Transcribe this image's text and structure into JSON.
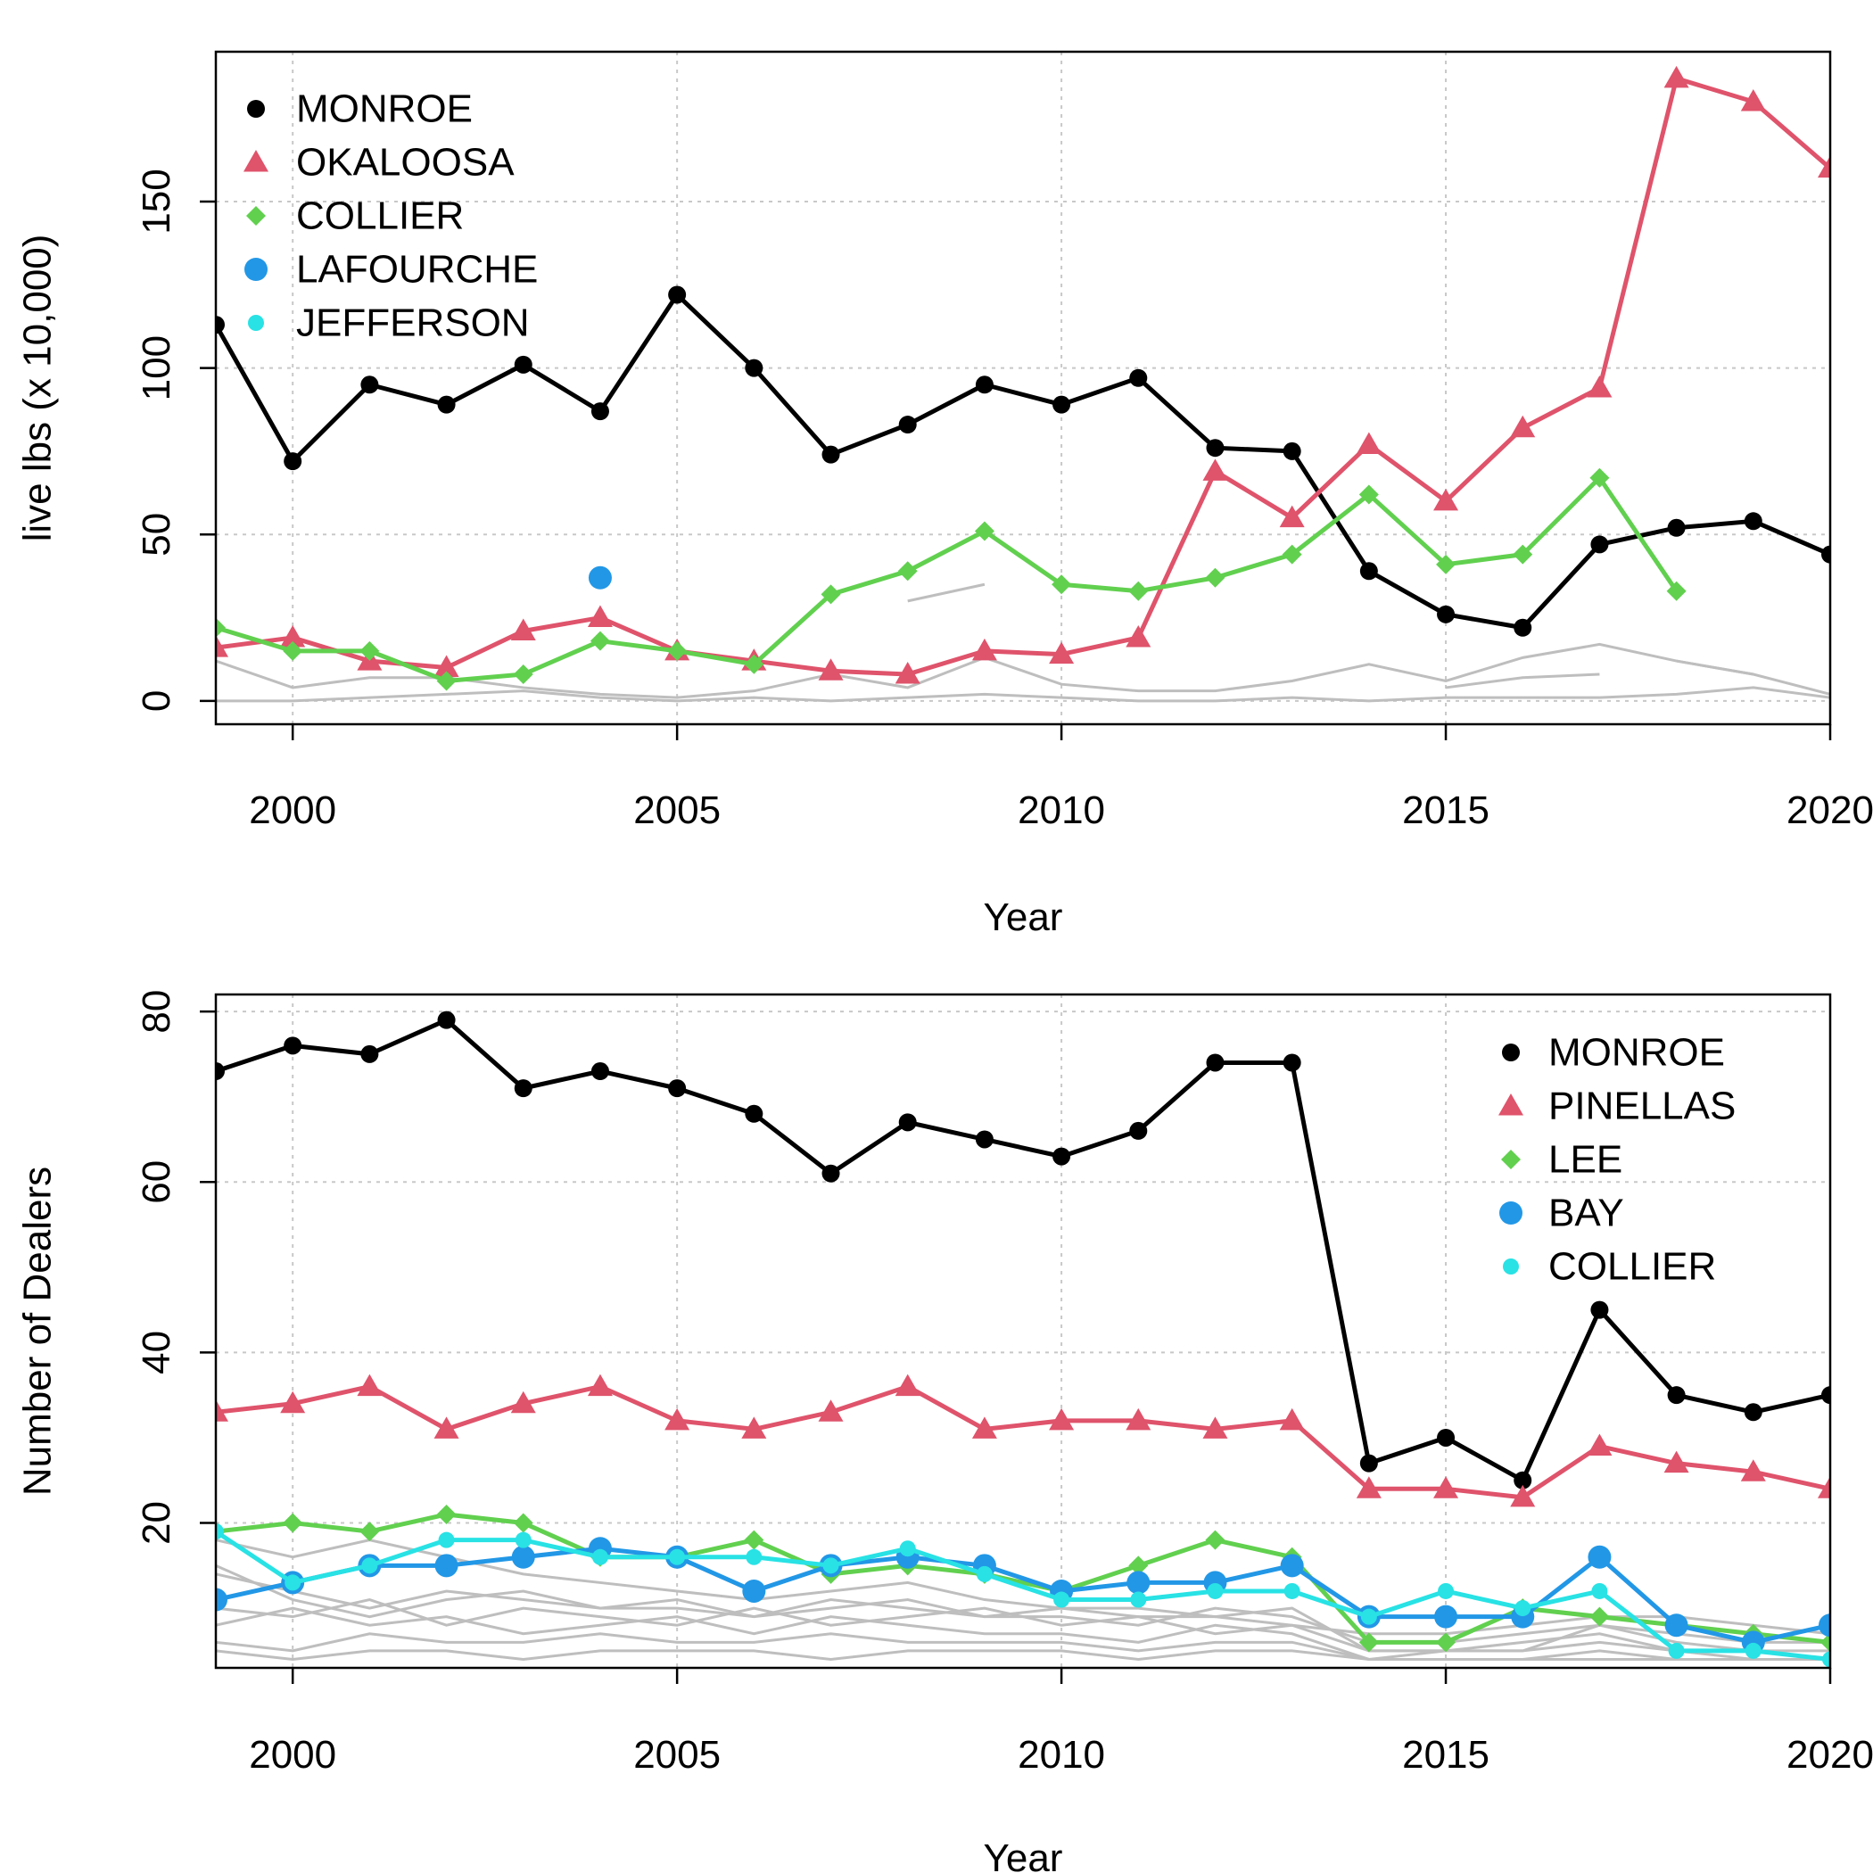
{
  "chart_data": [
    {
      "type": "line",
      "xlabel": "Year",
      "ylabel": "live lbs (x 10,000)",
      "xlim": [
        1999,
        2020
      ],
      "ylim": [
        -7,
        195
      ],
      "xticks": [
        2000,
        2005,
        2010,
        2015,
        2020
      ],
      "xtick_labels": [
        "2000",
        "2005",
        "2010",
        "2015",
        "2020"
      ],
      "yticks": [
        0,
        50,
        100,
        150
      ],
      "ytick_labels": [
        "0",
        "50",
        "100",
        "150"
      ],
      "grid": true,
      "legend_position": "top-left",
      "series": [
        {
          "name": "MONROE",
          "color": "#000000",
          "marker": "circle",
          "x": [
            1999,
            2000,
            2001,
            2002,
            2003,
            2004,
            2005,
            2006,
            2007,
            2008,
            2009,
            2010,
            2011,
            2012,
            2013,
            2014,
            2015,
            2016,
            2017,
            2018,
            2019,
            2020
          ],
          "y": [
            113,
            72,
            95,
            89,
            101,
            87,
            122,
            100,
            74,
            83,
            95,
            89,
            97,
            76,
            75,
            39,
            26,
            22,
            47,
            52,
            54,
            44
          ]
        },
        {
          "name": "OKALOOSA",
          "color": "#df536b",
          "marker": "triangle",
          "x": [
            1999,
            2000,
            2001,
            2002,
            2003,
            2004,
            2005,
            2006,
            2007,
            2008,
            2009,
            2010,
            2011,
            2012,
            2013,
            2014,
            2015,
            2016,
            2017,
            2018,
            2019,
            2020
          ],
          "y": [
            16,
            19,
            12,
            10,
            21,
            25,
            15,
            12,
            9,
            8,
            15,
            14,
            19,
            69,
            55,
            77,
            60,
            82,
            94,
            187,
            180,
            160
          ]
        },
        {
          "name": "COLLIER",
          "color": "#61d04f",
          "marker": "diamond",
          "x": [
            1999,
            2000,
            2001,
            2002,
            2003,
            2004,
            2005,
            2006,
            2007,
            2008,
            2009,
            2010,
            2011,
            2012,
            2013,
            2014,
            2015,
            2016,
            2017,
            2018
          ],
          "y": [
            22,
            15,
            15,
            6,
            8,
            18,
            15,
            11,
            32,
            39,
            51,
            35,
            33,
            37,
            44,
            62,
            41,
            44,
            67,
            33
          ]
        },
        {
          "name": "LAFOURCHE",
          "color": "#2297e6",
          "marker": "circle-large",
          "x": [
            2004
          ],
          "y": [
            37
          ]
        },
        {
          "name": "JEFFERSON",
          "color": "#28e2e5",
          "marker": "circle-small",
          "x": [],
          "y": []
        }
      ],
      "background_series": [
        {
          "x": [
            1999,
            2000,
            2001,
            2002,
            2003,
            2004,
            2005,
            2006,
            2007,
            2008,
            2009,
            2010,
            2011,
            2012,
            2013,
            2014,
            2015,
            2016,
            2017,
            2018,
            2019,
            2020
          ],
          "y": [
            12,
            4,
            7,
            7,
            4,
            2,
            1,
            3,
            8,
            4,
            13,
            5,
            3,
            3,
            6,
            11,
            6,
            13,
            17,
            12,
            8,
            2
          ]
        },
        {
          "x": [
            1999,
            2000,
            2001,
            2002,
            2003,
            2004,
            2005,
            2006,
            2007,
            2008,
            2009,
            2010,
            2011,
            2012,
            2013,
            2014,
            2015,
            2016,
            2017,
            2018,
            2019,
            2020
          ],
          "y": [
            0,
            0,
            1,
            2,
            3,
            1,
            0,
            1,
            0,
            1,
            2,
            1,
            0,
            0,
            1,
            0,
            1,
            1,
            1,
            2,
            4,
            1
          ]
        },
        {
          "x": [
            2008,
            2009
          ],
          "y": [
            30,
            35
          ]
        },
        {
          "x": [
            2015,
            2016,
            2017
          ],
          "y": [
            4,
            7,
            8
          ]
        },
        {
          "x": [
            2018,
            2019
          ],
          "y": [
            12,
            8
          ]
        }
      ]
    },
    {
      "type": "line",
      "xlabel": "Year",
      "ylabel": "Number of Dealers",
      "xlim": [
        1999,
        2020
      ],
      "ylim": [
        3,
        82
      ],
      "xticks": [
        2000,
        2005,
        2010,
        2015,
        2020
      ],
      "xtick_labels": [
        "2000",
        "2005",
        "2010",
        "2015",
        "2020"
      ],
      "yticks": [
        20,
        40,
        60,
        80
      ],
      "ytick_labels": [
        "20",
        "40",
        "60",
        "80"
      ],
      "grid": true,
      "legend_position": "top-right",
      "series": [
        {
          "name": "MONROE",
          "color": "#000000",
          "marker": "circle",
          "x": [
            1999,
            2000,
            2001,
            2002,
            2003,
            2004,
            2005,
            2006,
            2007,
            2008,
            2009,
            2010,
            2011,
            2012,
            2013,
            2014,
            2015,
            2016,
            2017,
            2018,
            2019,
            2020
          ],
          "y": [
            73,
            76,
            75,
            79,
            71,
            73,
            71,
            68,
            61,
            67,
            65,
            63,
            66,
            74,
            74,
            27,
            30,
            25,
            45,
            35,
            33,
            35
          ]
        },
        {
          "name": "PINELLAS",
          "color": "#df536b",
          "marker": "triangle",
          "x": [
            1999,
            2000,
            2001,
            2002,
            2003,
            2004,
            2005,
            2006,
            2007,
            2008,
            2009,
            2010,
            2011,
            2012,
            2013,
            2014,
            2015,
            2016,
            2017,
            2018,
            2019,
            2020
          ],
          "y": [
            33,
            34,
            36,
            31,
            34,
            36,
            32,
            31,
            33,
            36,
            31,
            32,
            32,
            31,
            32,
            24,
            24,
            23,
            29,
            27,
            26,
            24
          ]
        },
        {
          "name": "LEE",
          "color": "#61d04f",
          "marker": "diamond",
          "x": [
            1999,
            2000,
            2001,
            2002,
            2003,
            2004,
            2005,
            2006,
            2007,
            2008,
            2009,
            2010,
            2011,
            2012,
            2013,
            2014,
            2015,
            2016,
            2017,
            2018,
            2019,
            2020
          ],
          "y": [
            19,
            20,
            19,
            21,
            20,
            16,
            16,
            18,
            14,
            15,
            14,
            12,
            15,
            18,
            16,
            6,
            6,
            10,
            9,
            8,
            7,
            6
          ]
        },
        {
          "name": "BAY",
          "color": "#2297e6",
          "marker": "circle-large",
          "x": [
            1999,
            2000,
            2001,
            2002,
            2003,
            2004,
            2005,
            2006,
            2007,
            2008,
            2009,
            2010,
            2011,
            2012,
            2013,
            2014,
            2015,
            2016,
            2017,
            2018,
            2019,
            2020
          ],
          "y": [
            11,
            13,
            15,
            15,
            16,
            17,
            16,
            12,
            15,
            16,
            15,
            12,
            13,
            13,
            15,
            9,
            9,
            9,
            16,
            8,
            6,
            8
          ]
        },
        {
          "name": "COLLIER",
          "color": "#28e2e5",
          "marker": "circle-small",
          "x": [
            1999,
            2000,
            2001,
            2002,
            2003,
            2004,
            2005,
            2006,
            2007,
            2008,
            2009,
            2010,
            2011,
            2012,
            2013,
            2014,
            2015,
            2016,
            2017,
            2018,
            2019,
            2020
          ],
          "y": [
            19,
            13,
            15,
            18,
            18,
            16,
            16,
            16,
            15,
            17,
            14,
            11,
            11,
            12,
            12,
            9,
            12,
            10,
            12,
            5,
            5,
            4
          ]
        }
      ],
      "background_series": [
        {
          "x": [
            1999,
            2000,
            2001,
            2002,
            2003,
            2004,
            2005,
            2006,
            2007,
            2008,
            2009,
            2010,
            2011,
            2012,
            2013,
            2014,
            2015,
            2016,
            2017,
            2018,
            2019,
            2020
          ],
          "y": [
            18,
            16,
            18,
            16,
            14,
            13,
            12,
            11,
            12,
            13,
            11,
            10,
            10,
            9,
            8,
            7,
            7,
            8,
            9,
            9,
            8,
            7
          ]
        },
        {
          "x": [
            1999,
            2000,
            2001,
            2002,
            2003,
            2004,
            2005,
            2006,
            2007,
            2008,
            2009,
            2010,
            2011,
            2012,
            2013,
            2014,
            2015,
            2016,
            2017,
            2018,
            2019,
            2020
          ],
          "y": [
            14,
            12,
            10,
            12,
            11,
            10,
            11,
            9,
            10,
            11,
            9,
            9,
            8,
            10,
            9,
            6,
            6,
            7,
            8,
            6,
            5,
            5
          ]
        },
        {
          "x": [
            1999,
            2000,
            2001,
            2002,
            2003,
            2004,
            2005,
            2006,
            2007,
            2008,
            2009,
            2010,
            2011,
            2012,
            2013,
            2014,
            2015,
            2016,
            2017,
            2018,
            2019,
            2020
          ],
          "y": [
            10,
            9,
            11,
            8,
            10,
            9,
            8,
            10,
            8,
            9,
            10,
            8,
            9,
            7,
            8,
            5,
            5,
            6,
            7,
            5,
            5,
            4
          ]
        },
        {
          "x": [
            1999,
            2000,
            2001,
            2002,
            2003,
            2004,
            2005,
            2006,
            2007,
            2008,
            2009,
            2010,
            2011,
            2012,
            2013,
            2014,
            2015,
            2016,
            2017,
            2018,
            2019,
            2020
          ],
          "y": [
            8,
            10,
            8,
            9,
            7,
            8,
            9,
            7,
            9,
            8,
            7,
            7,
            6,
            8,
            7,
            4,
            5,
            5,
            6,
            5,
            4,
            4
          ]
        },
        {
          "x": [
            1999,
            2000,
            2001,
            2002,
            2003,
            2004,
            2005,
            2006,
            2007,
            2008,
            2009,
            2010,
            2011,
            2012,
            2013,
            2014,
            2015,
            2016,
            2017,
            2018,
            2019,
            2020
          ],
          "y": [
            6,
            5,
            7,
            6,
            6,
            7,
            6,
            6,
            7,
            6,
            6,
            6,
            5,
            6,
            6,
            4,
            4,
            4,
            5,
            4,
            4,
            4
          ]
        },
        {
          "x": [
            1999,
            2000,
            2001,
            2002,
            2003,
            2004,
            2005,
            2006,
            2007,
            2008,
            2009,
            2010,
            2011,
            2012,
            2013,
            2014,
            2015,
            2016,
            2017,
            2018,
            2019,
            2020
          ],
          "y": [
            5,
            4,
            5,
            5,
            4,
            5,
            5,
            5,
            4,
            5,
            5,
            5,
            4,
            5,
            5,
            4,
            4,
            4,
            4,
            4,
            4,
            4
          ]
        },
        {
          "x": [
            1999,
            2000,
            2001,
            2002,
            2003,
            2004,
            2005,
            2006,
            2007,
            2008,
            2009,
            2010,
            2011,
            2012,
            2013,
            2014,
            2015,
            2016,
            2017,
            2018,
            2019,
            2020
          ],
          "y": [
            15,
            11,
            9,
            11,
            12,
            10,
            10,
            9,
            11,
            10,
            9,
            10,
            9,
            9,
            10,
            5,
            5,
            5,
            8,
            7,
            6,
            6
          ]
        }
      ]
    }
  ]
}
